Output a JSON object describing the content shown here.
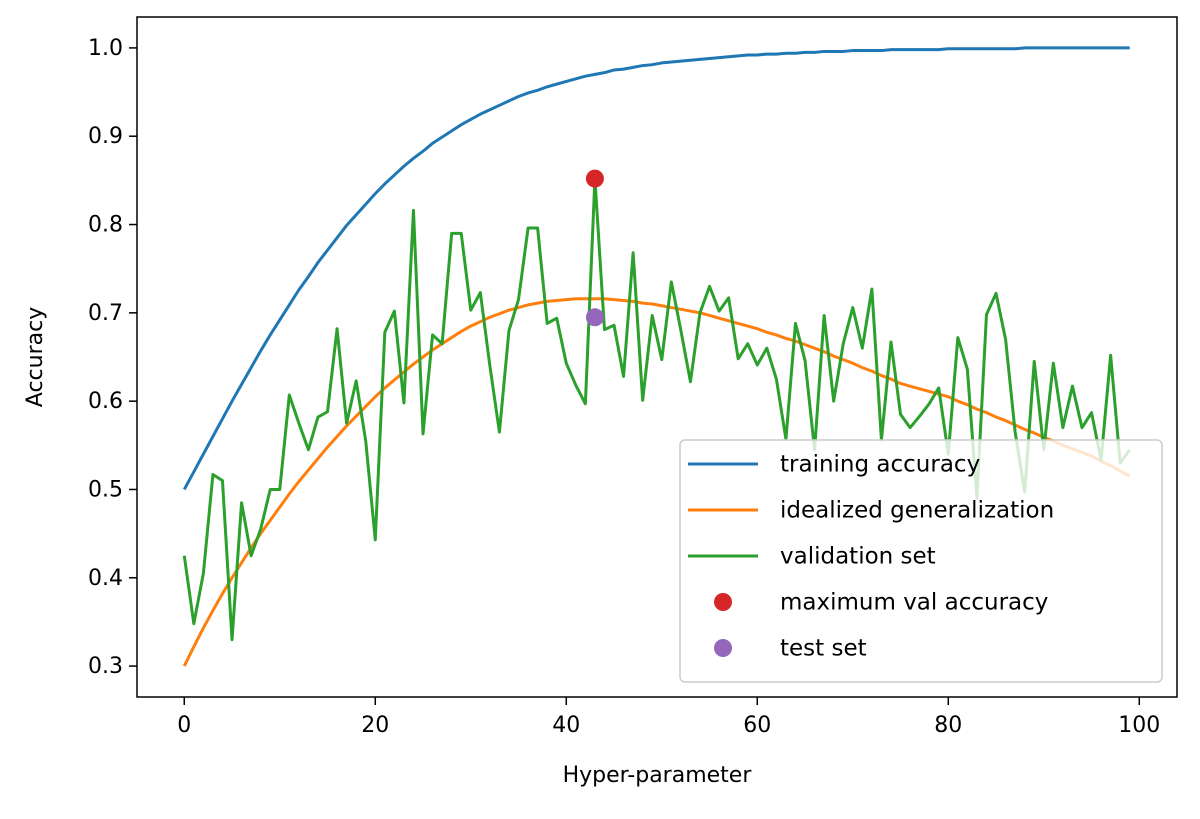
{
  "chart_data": {
    "type": "line",
    "xlabel": "Hyper-parameter",
    "ylabel": "Accuracy",
    "x": [
      0,
      1,
      2,
      3,
      4,
      5,
      6,
      7,
      8,
      9,
      10,
      11,
      12,
      13,
      14,
      15,
      16,
      17,
      18,
      19,
      20,
      21,
      22,
      23,
      24,
      25,
      26,
      27,
      28,
      29,
      30,
      31,
      32,
      33,
      34,
      35,
      36,
      37,
      38,
      39,
      40,
      41,
      42,
      43,
      44,
      45,
      46,
      47,
      48,
      49,
      50,
      51,
      52,
      53,
      54,
      55,
      56,
      57,
      58,
      59,
      60,
      61,
      62,
      63,
      64,
      65,
      66,
      67,
      68,
      69,
      70,
      71,
      72,
      73,
      74,
      75,
      76,
      77,
      78,
      79,
      80,
      81,
      82,
      83,
      84,
      85,
      86,
      87,
      88,
      89,
      90,
      91,
      92,
      93,
      94,
      95,
      96,
      97,
      98,
      99
    ],
    "series": [
      {
        "name": "training accuracy",
        "color": "#1f77b4",
        "style": "line",
        "values": [
          0.5,
          0.52,
          0.54,
          0.56,
          0.58,
          0.6,
          0.619,
          0.638,
          0.657,
          0.675,
          0.692,
          0.709,
          0.726,
          0.741,
          0.757,
          0.771,
          0.785,
          0.799,
          0.811,
          0.823,
          0.835,
          0.846,
          0.856,
          0.866,
          0.875,
          0.883,
          0.892,
          0.899,
          0.906,
          0.913,
          0.919,
          0.925,
          0.93,
          0.935,
          0.94,
          0.945,
          0.949,
          0.952,
          0.956,
          0.959,
          0.962,
          0.965,
          0.968,
          0.97,
          0.972,
          0.975,
          0.976,
          0.978,
          0.98,
          0.981,
          0.983,
          0.984,
          0.985,
          0.986,
          0.987,
          0.988,
          0.989,
          0.99,
          0.991,
          0.992,
          0.992,
          0.993,
          0.993,
          0.994,
          0.994,
          0.995,
          0.995,
          0.996,
          0.996,
          0.996,
          0.997,
          0.997,
          0.997,
          0.997,
          0.998,
          0.998,
          0.998,
          0.998,
          0.998,
          0.998,
          0.999,
          0.999,
          0.999,
          0.999,
          0.999,
          0.999,
          0.999,
          0.999,
          1.0,
          1.0,
          1.0,
          1.0,
          1.0,
          1.0,
          1.0,
          1.0,
          1.0,
          1.0,
          1.0,
          1.0
        ]
      },
      {
        "name": "idealized generalization",
        "color": "#ff7f0e",
        "style": "line",
        "values": [
          0.3,
          0.322,
          0.343,
          0.363,
          0.382,
          0.4,
          0.417,
          0.434,
          0.45,
          0.465,
          0.48,
          0.495,
          0.509,
          0.522,
          0.535,
          0.548,
          0.56,
          0.572,
          0.583,
          0.594,
          0.605,
          0.615,
          0.624,
          0.633,
          0.642,
          0.65,
          0.658,
          0.665,
          0.672,
          0.679,
          0.685,
          0.69,
          0.695,
          0.699,
          0.703,
          0.706,
          0.709,
          0.711,
          0.713,
          0.714,
          0.715,
          0.716,
          0.716,
          0.716,
          0.716,
          0.715,
          0.714,
          0.713,
          0.711,
          0.71,
          0.708,
          0.706,
          0.704,
          0.702,
          0.7,
          0.697,
          0.694,
          0.691,
          0.688,
          0.685,
          0.682,
          0.678,
          0.675,
          0.671,
          0.668,
          0.664,
          0.66,
          0.656,
          0.651,
          0.647,
          0.643,
          0.638,
          0.634,
          0.629,
          0.625,
          0.62,
          0.617,
          0.614,
          0.611,
          0.608,
          0.605,
          0.6,
          0.596,
          0.591,
          0.587,
          0.582,
          0.578,
          0.573,
          0.568,
          0.564,
          0.559,
          0.555,
          0.55,
          0.546,
          0.542,
          0.538,
          0.532,
          0.527,
          0.521,
          0.515
        ]
      },
      {
        "name": "validation set",
        "color": "#2ca02c",
        "style": "line",
        "values": [
          0.425,
          0.348,
          0.405,
          0.517,
          0.51,
          0.33,
          0.485,
          0.425,
          0.455,
          0.5,
          0.5,
          0.607,
          0.575,
          0.545,
          0.582,
          0.588,
          0.682,
          0.575,
          0.623,
          0.555,
          0.443,
          0.678,
          0.702,
          0.598,
          0.816,
          0.563,
          0.675,
          0.665,
          0.79,
          0.79,
          0.703,
          0.723,
          0.64,
          0.565,
          0.68,
          0.715,
          0.796,
          0.796,
          0.688,
          0.694,
          0.643,
          0.618,
          0.597,
          0.852,
          0.681,
          0.686,
          0.628,
          0.768,
          0.601,
          0.697,
          0.647,
          0.735,
          0.68,
          0.622,
          0.7,
          0.73,
          0.702,
          0.717,
          0.648,
          0.665,
          0.641,
          0.66,
          0.625,
          0.557,
          0.688,
          0.646,
          0.545,
          0.697,
          0.6,
          0.665,
          0.706,
          0.66,
          0.727,
          0.556,
          0.667,
          0.585,
          0.57,
          0.583,
          0.597,
          0.615,
          0.54,
          0.672,
          0.636,
          0.49,
          0.698,
          0.722,
          0.67,
          0.565,
          0.497,
          0.645,
          0.545,
          0.643,
          0.57,
          0.617,
          0.57,
          0.587,
          0.533,
          0.652,
          0.53,
          0.545
        ]
      },
      {
        "name": "maximum val accuracy",
        "color": "#d62728",
        "style": "marker",
        "x": [
          43
        ],
        "values": [
          0.852
        ]
      },
      {
        "name": "test set",
        "color": "#9467bd",
        "style": "marker",
        "x": [
          43
        ],
        "values": [
          0.695
        ]
      }
    ],
    "xlim": [
      -4.95,
      103.95
    ],
    "xticks": [
      0,
      20,
      40,
      60,
      80,
      100
    ],
    "ylim": [
      0.265,
      1.035
    ],
    "yticks": [
      0.3,
      0.4,
      0.5,
      0.6,
      0.7,
      0.8,
      0.9,
      {
        "value": 1,
        "label": "1.0"
      }
    ],
    "legend": "lower right",
    "grid": false
  }
}
